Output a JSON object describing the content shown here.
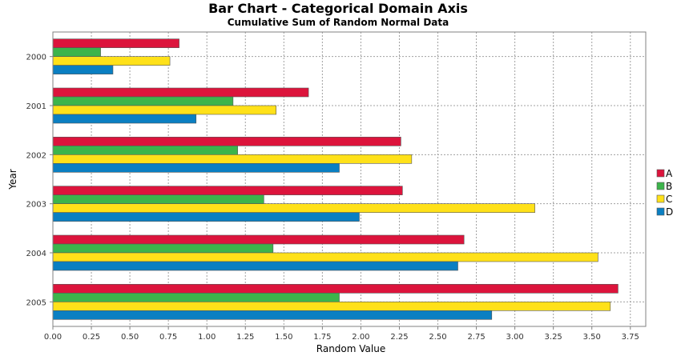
{
  "chart_data": {
    "type": "bar",
    "orientation": "horizontal",
    "title": "Bar Chart - Categorical Domain Axis",
    "subtitle": "Cumulative Sum of Random Normal Data",
    "xlabel": "Random Value",
    "ylabel": "Year",
    "xlim": [
      0,
      3.85
    ],
    "xticks": [
      "0.00",
      "0.25",
      "0.50",
      "0.75",
      "1.00",
      "1.25",
      "1.50",
      "1.75",
      "2.00",
      "2.25",
      "2.50",
      "2.75",
      "3.00",
      "3.25",
      "3.50",
      "3.75"
    ],
    "categories": [
      "2000",
      "2001",
      "2002",
      "2003",
      "2004",
      "2005"
    ],
    "grid": true,
    "legend_position": "right",
    "series": [
      {
        "name": "A",
        "color": "#dc143c",
        "values": [
          0.82,
          1.66,
          2.26,
          2.27,
          2.67,
          3.67
        ]
      },
      {
        "name": "B",
        "color": "#3cb44b",
        "values": [
          0.31,
          1.17,
          1.2,
          1.37,
          1.43,
          1.86
        ]
      },
      {
        "name": "C",
        "color": "#ffe119",
        "values": [
          0.76,
          1.45,
          2.33,
          3.13,
          3.54,
          3.62
        ]
      },
      {
        "name": "D",
        "color": "#0a7fc2",
        "values": [
          0.39,
          0.93,
          1.86,
          1.99,
          2.63,
          2.85
        ]
      }
    ]
  }
}
